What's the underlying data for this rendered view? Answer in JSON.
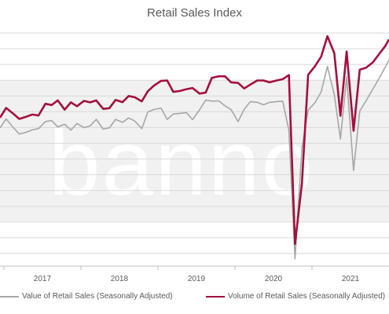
{
  "chart_data": {
    "type": "line",
    "title": "Retail Sales Index",
    "xlabel": "",
    "ylabel": "",
    "x_tick_labels": [
      "2017",
      "2018",
      "2019",
      "2020",
      "2021"
    ],
    "x_range": [
      2016.45,
      2021.5
    ],
    "y_range": [
      0,
      100
    ],
    "y_axis_labels_visible": false,
    "grid": "horizontal",
    "legend_position": "bottom",
    "watermark": "banno",
    "series": [
      {
        "name": "Value of Retail Sales (Seasonally Adjusted)",
        "color": "#a6a6a6",
        "values": [
          [
            2016.45,
            56.8
          ],
          [
            2016.53,
            60.5
          ],
          [
            2016.62,
            57.0
          ],
          [
            2016.7,
            54.3
          ],
          [
            2016.79,
            55.0
          ],
          [
            2016.87,
            56.0
          ],
          [
            2016.95,
            56.5
          ],
          [
            2017.04,
            59.4
          ],
          [
            2017.12,
            59.8
          ],
          [
            2017.2,
            57.2
          ],
          [
            2017.29,
            58.3
          ],
          [
            2017.37,
            55.9
          ],
          [
            2017.45,
            58.6
          ],
          [
            2017.54,
            56.9
          ],
          [
            2017.62,
            57.6
          ],
          [
            2017.7,
            60.3
          ],
          [
            2017.79,
            56.3
          ],
          [
            2017.87,
            56.8
          ],
          [
            2017.95,
            60.3
          ],
          [
            2018.04,
            59.1
          ],
          [
            2018.12,
            60.9
          ],
          [
            2018.2,
            59.6
          ],
          [
            2018.29,
            56.5
          ],
          [
            2018.37,
            63.4
          ],
          [
            2018.45,
            64.4
          ],
          [
            2018.54,
            64.9
          ],
          [
            2018.62,
            60.3
          ],
          [
            2018.7,
            62.5
          ],
          [
            2018.79,
            62.8
          ],
          [
            2018.87,
            63.1
          ],
          [
            2018.95,
            60.2
          ],
          [
            2019.04,
            64.2
          ],
          [
            2019.12,
            68.2
          ],
          [
            2019.2,
            67.8
          ],
          [
            2019.29,
            67.9
          ],
          [
            2019.37,
            65.9
          ],
          [
            2019.45,
            64.3
          ],
          [
            2019.54,
            59.4
          ],
          [
            2019.62,
            64.4
          ],
          [
            2019.7,
            67.6
          ],
          [
            2019.79,
            67.3
          ],
          [
            2019.87,
            66.3
          ],
          [
            2019.95,
            67.3
          ],
          [
            2020.04,
            67.6
          ],
          [
            2020.12,
            67.8
          ],
          [
            2020.2,
            55.8
          ],
          [
            2020.28,
            3.0
          ],
          [
            2020.37,
            48.5
          ],
          [
            2020.45,
            64.1
          ],
          [
            2020.54,
            67.2
          ],
          [
            2020.62,
            71.6
          ],
          [
            2020.7,
            82.0
          ],
          [
            2020.79,
            70.5
          ],
          [
            2020.87,
            52.2
          ],
          [
            2020.95,
            77.8
          ],
          [
            2021.04,
            39.3
          ],
          [
            2021.12,
            63.7
          ],
          [
            2021.2,
            67.8
          ],
          [
            2021.29,
            72.7
          ],
          [
            2021.37,
            77.1
          ],
          [
            2021.45,
            81.7
          ],
          [
            2021.5,
            84.6
          ]
        ]
      },
      {
        "name": "Volume of Retail Sales (Seasonally Adjusted)",
        "color": "#a50f3d",
        "values": [
          [
            2016.45,
            61.0
          ],
          [
            2016.53,
            65.0
          ],
          [
            2016.62,
            62.7
          ],
          [
            2016.7,
            60.5
          ],
          [
            2016.79,
            61.4
          ],
          [
            2016.87,
            62.3
          ],
          [
            2016.95,
            61.9
          ],
          [
            2017.04,
            66.7
          ],
          [
            2017.12,
            66.2
          ],
          [
            2017.2,
            68.1
          ],
          [
            2017.29,
            64.3
          ],
          [
            2017.37,
            67.3
          ],
          [
            2017.45,
            65.7
          ],
          [
            2017.54,
            67.9
          ],
          [
            2017.62,
            67.3
          ],
          [
            2017.7,
            68.1
          ],
          [
            2017.79,
            64.6
          ],
          [
            2017.87,
            64.9
          ],
          [
            2017.95,
            68.3
          ],
          [
            2018.04,
            67.4
          ],
          [
            2018.12,
            69.9
          ],
          [
            2018.2,
            69.4
          ],
          [
            2018.29,
            67.7
          ],
          [
            2018.37,
            71.9
          ],
          [
            2018.45,
            74.2
          ],
          [
            2018.54,
            76.1
          ],
          [
            2018.62,
            76.3
          ],
          [
            2018.7,
            71.6
          ],
          [
            2018.79,
            72.0
          ],
          [
            2018.87,
            72.7
          ],
          [
            2018.95,
            73.2
          ],
          [
            2019.04,
            70.9
          ],
          [
            2019.12,
            71.3
          ],
          [
            2019.2,
            77.4
          ],
          [
            2019.29,
            78.0
          ],
          [
            2019.37,
            78.0
          ],
          [
            2019.45,
            75.5
          ],
          [
            2019.54,
            75.3
          ],
          [
            2019.62,
            73.0
          ],
          [
            2019.7,
            74.6
          ],
          [
            2019.79,
            76.3
          ],
          [
            2019.87,
            76.3
          ],
          [
            2019.95,
            75.5
          ],
          [
            2020.04,
            76.3
          ],
          [
            2020.12,
            76.8
          ],
          [
            2020.2,
            78.5
          ],
          [
            2020.28,
            9.1
          ],
          [
            2020.37,
            34.0
          ],
          [
            2020.45,
            78.6
          ],
          [
            2020.54,
            82.2
          ],
          [
            2020.62,
            86.1
          ],
          [
            2020.7,
            94.5
          ],
          [
            2020.79,
            87.5
          ],
          [
            2020.87,
            61.8
          ],
          [
            2020.95,
            88.2
          ],
          [
            2021.04,
            55.6
          ],
          [
            2021.12,
            80.7
          ],
          [
            2021.2,
            81.5
          ],
          [
            2021.29,
            83.7
          ],
          [
            2021.37,
            87.1
          ],
          [
            2021.45,
            90.4
          ],
          [
            2021.5,
            93.2
          ]
        ]
      }
    ]
  }
}
